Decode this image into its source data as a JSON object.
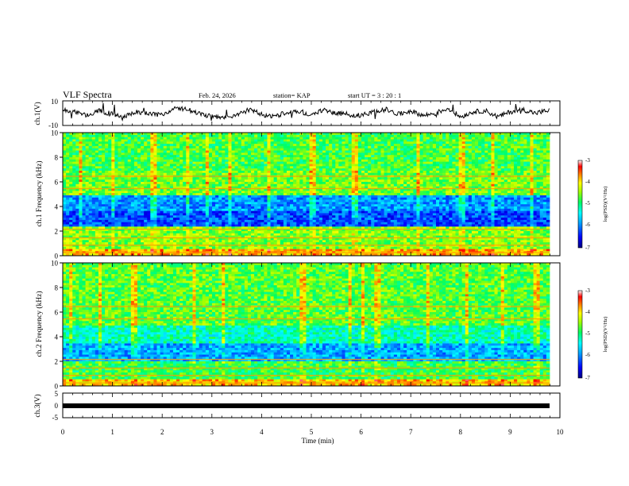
{
  "header": {
    "title": "VLF Spectra",
    "date": "Feb. 24, 2026",
    "station": "station= KAP",
    "start_ut": "start  UT =   3  : 20 : 1"
  },
  "chart_data": [
    {
      "type": "line",
      "panel": "ch1-waveform",
      "ylabel": "ch.1(V)",
      "ylim": [
        -10,
        10
      ],
      "yticks": [
        "10",
        "-10"
      ],
      "xlim": [
        0,
        10
      ],
      "x": [
        0.0,
        0.25,
        0.5,
        0.75,
        1.0,
        1.25,
        1.5,
        1.75,
        2.0,
        2.25,
        2.5,
        2.75,
        3.0,
        3.25,
        3.5,
        3.75,
        4.0,
        4.25,
        4.5,
        4.75,
        5.0,
        5.25,
        5.5,
        5.75,
        6.0,
        6.25,
        6.5,
        6.75,
        7.0,
        7.25,
        7.5,
        7.75,
        8.0,
        8.25,
        8.5,
        8.75,
        9.0,
        9.25,
        9.5,
        9.75
      ],
      "values": [
        3,
        1,
        -2,
        2,
        -1,
        -3,
        1,
        0,
        -2,
        4,
        3,
        0,
        -3,
        -4,
        -2,
        3,
        -1,
        -3,
        1,
        2,
        -2,
        3,
        0,
        -1,
        -2,
        1,
        3,
        -1,
        2,
        -2,
        0,
        4,
        -3,
        1,
        2,
        -3,
        1,
        3,
        0,
        2
      ]
    },
    {
      "type": "heatmap",
      "panel": "ch1-spectrogram",
      "ylabel": "ch.1 Frequency (kHz)",
      "ylim": [
        0,
        10
      ],
      "xlim": [
        0,
        10
      ],
      "yticks": [
        "0",
        "2",
        "4",
        "6",
        "8",
        "10"
      ],
      "colorbar": {
        "label": "log(PSD)(V²/Hz)",
        "range": [
          -7,
          -3
        ],
        "ticks": [
          "-3",
          "-4",
          "-5",
          "-6",
          "-7"
        ]
      }
    },
    {
      "type": "heatmap",
      "panel": "ch2-spectrogram",
      "ylabel": "ch.2 Frequency (kHz)",
      "ylim": [
        0,
        10
      ],
      "xlim": [
        0,
        10
      ],
      "yticks": [
        "0",
        "2",
        "4",
        "6",
        "8",
        "10"
      ],
      "colorbar": {
        "label": "log(PSD)(V²/Hz)",
        "range": [
          -7,
          -3
        ],
        "ticks": [
          "-3",
          "-4",
          "-5",
          "-6",
          "-7"
        ]
      }
    },
    {
      "type": "line",
      "panel": "ch3-waveform",
      "ylabel": "ch.3(V)",
      "ylim": [
        -5,
        5
      ],
      "yticks": [
        "5",
        "0",
        "-5"
      ],
      "xlim": [
        0,
        10
      ],
      "constant_value": -1
    }
  ],
  "x_axis": {
    "label": "Time  (min)",
    "ticks": [
      "0",
      "1",
      "2",
      "3",
      "4",
      "5",
      "6",
      "7",
      "8",
      "9",
      "10"
    ]
  },
  "colors": {
    "colormap": [
      "#000080",
      "#0000ff",
      "#00a0ff",
      "#00ffff",
      "#00ff60",
      "#a0ff00",
      "#ffff00",
      "#ff8000",
      "#ff0000",
      "#ffffff"
    ]
  }
}
